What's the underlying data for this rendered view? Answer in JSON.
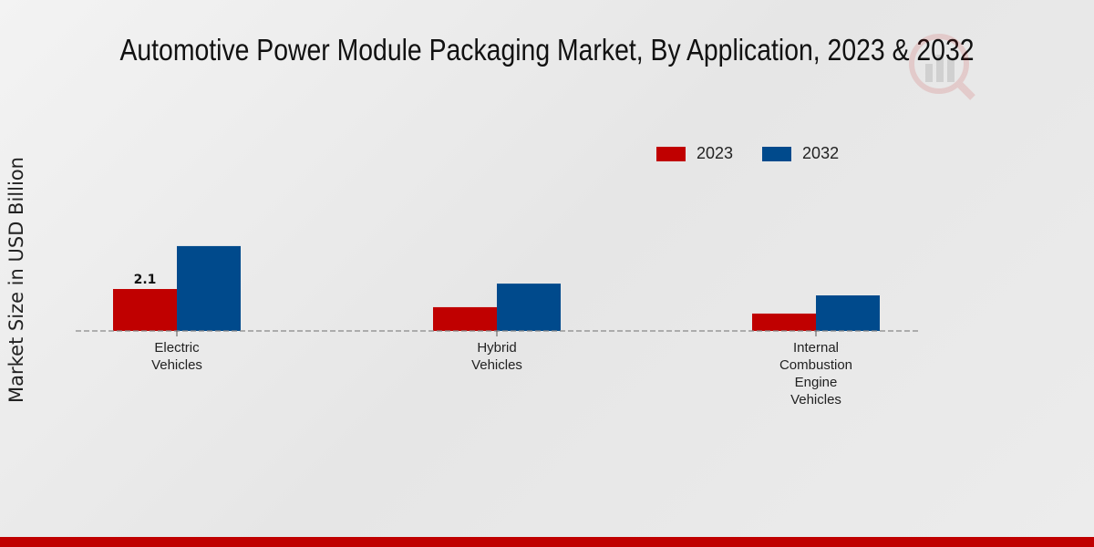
{
  "title": "Automotive Power Module Packaging Market, By Application, 2023 & 2032",
  "colors": {
    "2023": "#c00000",
    "2032": "#004a8c",
    "bottom_bar": "#c00000"
  },
  "chart_data": {
    "type": "bar",
    "title": "Automotive Power Module Packaging Market, By Application, 2023 & 2032",
    "xlabel": "",
    "ylabel": "Market Size in USD Billion",
    "categories": [
      [
        "Electric",
        "Vehicles"
      ],
      [
        "Hybrid",
        "Vehicles"
      ],
      [
        "Internal",
        "Combustion",
        "Engine",
        "Vehicles"
      ]
    ],
    "series": [
      {
        "name": "2023",
        "values": [
          2.1,
          1.19,
          0.87
        ]
      },
      {
        "name": "2032",
        "values": [
          4.25,
          2.37,
          1.78
        ]
      }
    ],
    "data_labels": [
      {
        "series": "2023",
        "category": 0,
        "text": "2.1"
      }
    ],
    "ylim": [
      0,
      10
    ],
    "grid": false,
    "legend": "top-right"
  }
}
